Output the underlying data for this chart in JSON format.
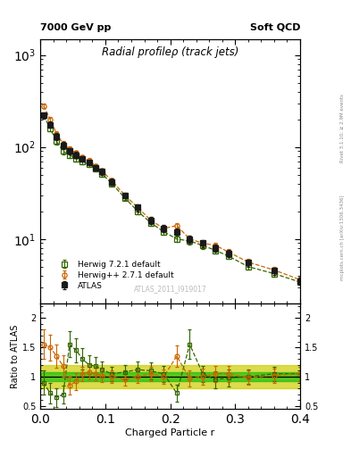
{
  "title_main": "Radial profileρ (track jets)",
  "header_left": "7000 GeV pp",
  "header_right": "Soft QCD",
  "watermark": "ATLAS_2011_I919017",
  "right_label_top": "Rivet 3.1.10; ≥ 2.9M events",
  "right_label_bot": "mcplots.cern.ch [arXiv:1306.3436]",
  "xlabel": "Charged Particle r",
  "ylabel_ratio": "Ratio to ATLAS",
  "xlim": [
    0.0,
    0.4
  ],
  "ylim_main": [
    2.0,
    1500.0
  ],
  "ylim_ratio": [
    0.45,
    2.25
  ],
  "atlas_x": [
    0.005,
    0.015,
    0.025,
    0.035,
    0.045,
    0.055,
    0.065,
    0.075,
    0.085,
    0.095,
    0.11,
    0.13,
    0.15,
    0.17,
    0.19,
    0.21,
    0.23,
    0.25,
    0.27,
    0.29,
    0.32,
    0.36,
    0.4
  ],
  "atlas_y": [
    220,
    175,
    130,
    105,
    90,
    82,
    75,
    68,
    60,
    54,
    42,
    30,
    22,
    16,
    13,
    12,
    10,
    9,
    8,
    7,
    5.5,
    4.5,
    3.5
  ],
  "atlas_yerr": [
    18,
    14,
    11,
    9,
    7,
    6,
    5,
    5,
    4,
    4,
    3,
    2,
    2,
    1.5,
    1.2,
    1.0,
    0.9,
    0.8,
    0.7,
    0.6,
    0.5,
    0.4,
    0.3
  ],
  "h271_y": [
    280,
    200,
    140,
    108,
    95,
    86,
    77,
    71,
    62,
    55,
    43,
    30,
    22,
    16,
    13,
    14,
    10,
    9,
    8.5,
    7.2,
    5.6,
    4.6,
    3.6
  ],
  "h721_y": [
    220,
    160,
    115,
    90,
    82,
    74,
    69,
    65,
    58,
    51,
    40,
    28,
    20,
    15,
    12,
    10,
    9.5,
    8.5,
    7.5,
    6.5,
    5.0,
    4.2,
    3.4
  ],
  "h271_ratio": [
    1.55,
    1.5,
    1.35,
    1.18,
    0.85,
    0.92,
    1.05,
    1.08,
    1.05,
    1.02,
    1.0,
    0.95,
    1.0,
    1.05,
    1.0,
    1.35,
    0.97,
    1.0,
    1.05,
    1.05,
    0.98,
    1.02,
    1.05
  ],
  "h721_ratio": [
    0.9,
    0.72,
    0.65,
    0.7,
    1.55,
    1.45,
    1.3,
    1.2,
    1.18,
    1.12,
    1.05,
    1.08,
    1.12,
    1.1,
    1.05,
    0.72,
    1.55,
    1.05,
    0.95,
    0.98,
    1.0,
    1.05,
    1.05
  ],
  "h271_ratio_err": [
    0.25,
    0.22,
    0.2,
    0.18,
    0.15,
    0.14,
    0.12,
    0.12,
    0.11,
    0.11,
    0.1,
    0.1,
    0.1,
    0.12,
    0.12,
    0.18,
    0.14,
    0.14,
    0.14,
    0.14,
    0.12,
    0.12,
    0.12
  ],
  "h721_ratio_err": [
    0.2,
    0.18,
    0.16,
    0.15,
    0.22,
    0.2,
    0.18,
    0.16,
    0.16,
    0.14,
    0.12,
    0.12,
    0.14,
    0.14,
    0.14,
    0.15,
    0.25,
    0.14,
    0.14,
    0.14,
    0.12,
    0.12,
    0.12
  ],
  "color_atlas": "#1a1a1a",
  "color_h271": "#cc6600",
  "color_h721": "#336600",
  "band_green": "#00bb00",
  "band_yellow": "#cccc00",
  "legend_labels": [
    "ATLAS",
    "Herwig++ 2.7.1 default",
    "Herwig 7.2.1 default"
  ]
}
